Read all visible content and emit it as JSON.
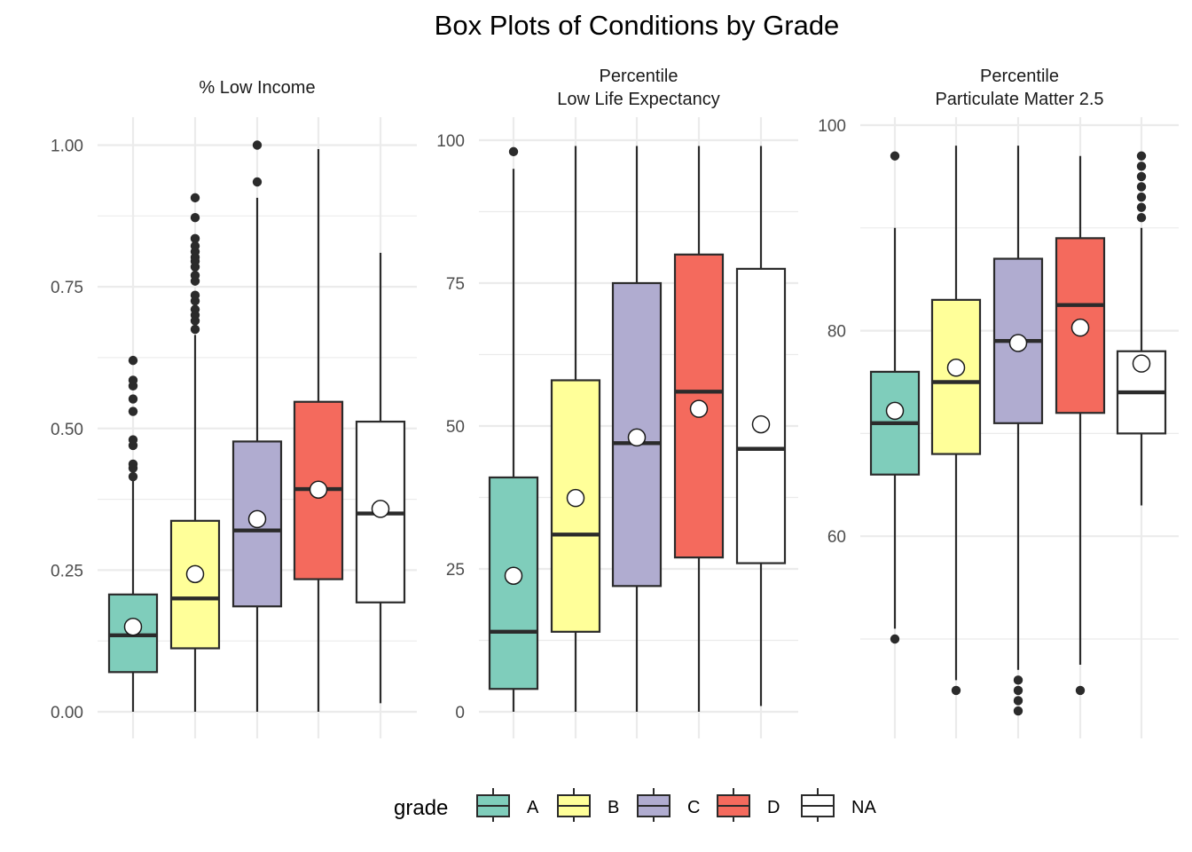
{
  "chart_data": {
    "type": "boxplot",
    "title": "Box Plots of Conditions by Grade",
    "categories": [
      "A",
      "B",
      "C",
      "D",
      "NA"
    ],
    "colors": {
      "A": "#7fcdbb",
      "B": "#ffff99",
      "C": "#b0acd0",
      "D": "#f46a5d",
      "NA": "#ffffff"
    },
    "legend": {
      "title": "grade",
      "position": "bottom",
      "items": [
        "A",
        "B",
        "C",
        "D",
        "NA"
      ]
    },
    "grid": true,
    "panels": [
      {
        "title": [
          "% Low Income"
        ],
        "ylim": [
          0,
          1
        ],
        "yticks": [
          0,
          0.25,
          0.5,
          0.75,
          1
        ],
        "ytick_labels": [
          "0.00",
          "0.25",
          "0.50",
          "0.75",
          "1.00"
        ],
        "boxes": [
          {
            "grade": "A",
            "lower": 0.0,
            "q1": 0.07,
            "median": 0.135,
            "q3": 0.207,
            "upper": 0.41,
            "mean": 0.15,
            "outliers": [
              0.415,
              0.43,
              0.437,
              0.47,
              0.48,
              0.53,
              0.552,
              0.575,
              0.585,
              0.62
            ]
          },
          {
            "grade": "B",
            "lower": 0.0,
            "q1": 0.112,
            "median": 0.2,
            "q3": 0.337,
            "upper": 0.665,
            "mean": 0.243,
            "outliers": [
              0.675,
              0.69,
              0.7,
              0.71,
              0.725,
              0.735,
              0.76,
              0.77,
              0.785,
              0.795,
              0.802,
              0.812,
              0.822,
              0.835,
              0.872,
              0.907
            ]
          },
          {
            "grade": "C",
            "lower": 0.0,
            "q1": 0.186,
            "median": 0.32,
            "q3": 0.477,
            "upper": 0.907,
            "mean": 0.34,
            "outliers": [
              0.935,
              1.0
            ]
          },
          {
            "grade": "D",
            "lower": 0.0,
            "q1": 0.234,
            "median": 0.393,
            "q3": 0.547,
            "upper": 0.993,
            "mean": 0.392,
            "outliers": []
          },
          {
            "grade": "NA",
            "lower": 0.015,
            "q1": 0.193,
            "median": 0.35,
            "q3": 0.512,
            "upper": 0.81,
            "mean": 0.358,
            "outliers": []
          }
        ]
      },
      {
        "title": [
          "Percentile",
          "Low Life Expectancy"
        ],
        "ylim": [
          0,
          100
        ],
        "yticks": [
          0,
          25,
          50,
          75,
          100
        ],
        "ytick_labels": [
          "0",
          "25",
          "50",
          "75",
          "100"
        ],
        "boxes": [
          {
            "grade": "A",
            "lower": 0,
            "q1": 4,
            "median": 14,
            "q3": 41,
            "upper": 95,
            "mean": 23.8,
            "outliers": [
              98
            ]
          },
          {
            "grade": "B",
            "lower": 0,
            "q1": 14,
            "median": 31,
            "q3": 58,
            "upper": 99,
            "mean": 37.4,
            "outliers": []
          },
          {
            "grade": "C",
            "lower": 0,
            "q1": 22,
            "median": 47,
            "q3": 75,
            "upper": 99,
            "mean": 48,
            "outliers": []
          },
          {
            "grade": "D",
            "lower": 0,
            "q1": 27,
            "median": 56,
            "q3": 80,
            "upper": 99,
            "mean": 53,
            "outliers": []
          },
          {
            "grade": "NA",
            "lower": 1,
            "q1": 26,
            "median": 46,
            "q3": 77.5,
            "upper": 99,
            "mean": 50.3,
            "outliers": []
          }
        ]
      },
      {
        "title": [
          "Percentile",
          "Particulate Matter 2.5"
        ],
        "ylim": [
          43,
          100
        ],
        "yticks": [
          60,
          80,
          100
        ],
        "ytick_labels": [
          "60",
          "80",
          "100"
        ],
        "minor_yticks": [
          50,
          70,
          90
        ],
        "boxes": [
          {
            "grade": "A",
            "lower": 51,
            "q1": 66,
            "median": 71,
            "q3": 76,
            "upper": 90,
            "mean": 72.2,
            "outliers": [
              50,
              97
            ]
          },
          {
            "grade": "B",
            "lower": 46,
            "q1": 68,
            "median": 75,
            "q3": 83,
            "upper": 98,
            "mean": 76.4,
            "outliers": [
              45
            ]
          },
          {
            "grade": "C",
            "lower": 47,
            "q1": 71,
            "median": 79,
            "q3": 87,
            "upper": 98,
            "mean": 78.8,
            "outliers": [
              43,
              44,
              45,
              46
            ]
          },
          {
            "grade": "D",
            "lower": 47.5,
            "q1": 72,
            "median": 82.5,
            "q3": 89,
            "upper": 97,
            "mean": 80.3,
            "outliers": [
              45
            ]
          },
          {
            "grade": "NA",
            "lower": 63,
            "q1": 70,
            "median": 74,
            "q3": 78,
            "upper": 90,
            "mean": 76.8,
            "outliers": [
              91,
              92,
              93,
              94,
              95,
              96,
              97
            ]
          }
        ]
      }
    ]
  }
}
